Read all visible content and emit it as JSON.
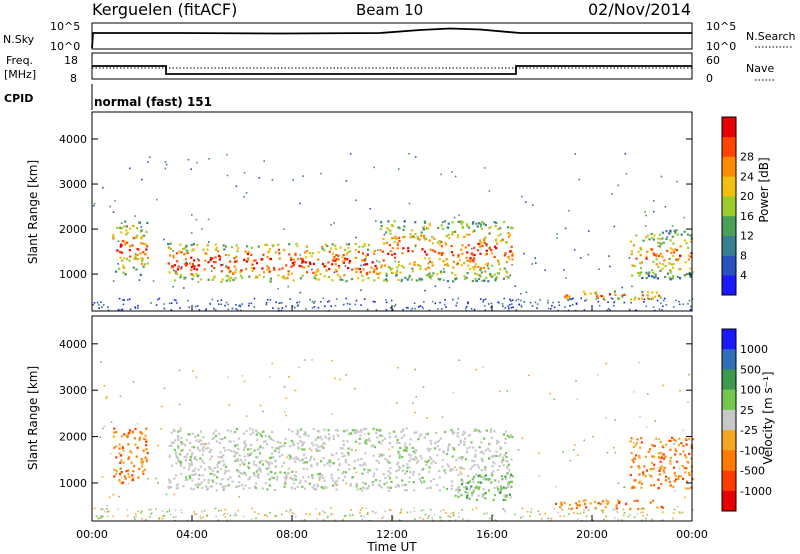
{
  "header": {
    "station": "Kerguelen (fitACF)",
    "beam": "Beam 10",
    "date": "02/Nov/2014"
  },
  "strips": {
    "nsky": {
      "label": "N.Sky",
      "tick_top": "10^5",
      "tick_bottom": "10^0"
    },
    "nsearch": {
      "label": "N.Search",
      "tick_top": "10^5",
      "tick_bottom": "10^0"
    },
    "freq": {
      "label_line1": "Freq.",
      "label_line2": "[MHz]",
      "tick_top": "18",
      "tick_bottom": "8"
    },
    "nave": {
      "label": "Nave",
      "tick_top": "60",
      "tick_bottom": "0"
    },
    "cpid": {
      "label": "CPID",
      "value": "normal (fast) 151"
    }
  },
  "chart_data": [
    {
      "type": "heatmap",
      "panel": "power",
      "ylabel": "Slant Range [km]",
      "yticks": [
        "1000",
        "2000",
        "3000",
        "4000"
      ],
      "ylim": [
        180,
        4600
      ],
      "xlim": [
        0,
        24
      ],
      "colorbar": {
        "label": "Power [dB]",
        "ticks": [
          "4",
          "8",
          "12",
          "16",
          "20",
          "24",
          "28"
        ],
        "range": [
          0,
          30
        ],
        "colors": [
          "#1a1aff",
          "#2a52be",
          "#3a7f8f",
          "#4aa058",
          "#9ccc2c",
          "#f0c010",
          "#ff8c00",
          "#ff4500",
          "#e60000"
        ]
      },
      "echo_regions": [
        {
          "t0": 0.8,
          "t1": 2.2,
          "r0": 1000,
          "r1": 2200,
          "level": 0.55
        },
        {
          "t0": 3.0,
          "t1": 11.5,
          "r0": 850,
          "r1": 1700,
          "level": 0.75
        },
        {
          "t0": 11.5,
          "t1": 16.8,
          "r0": 850,
          "r1": 2200,
          "level": 0.6
        },
        {
          "t0": 18.5,
          "t1": 22.8,
          "r0": 450,
          "r1": 650,
          "level": 0.7
        },
        {
          "t0": 21.5,
          "t1": 24.0,
          "r0": 900,
          "r1": 2000,
          "level": 0.5
        }
      ]
    },
    {
      "type": "heatmap",
      "panel": "velocity",
      "ylabel": "Slant Range [km]",
      "yticks": [
        "1000",
        "2000",
        "3000",
        "4000"
      ],
      "ylim": [
        180,
        4600
      ],
      "xlim": [
        0,
        24
      ],
      "xticks": [
        "00:00",
        "04:00",
        "08:00",
        "12:00",
        "16:00",
        "20:00",
        "00:00"
      ],
      "xlabel": "Time UT",
      "colorbar": {
        "label": "Velocity [m s⁻¹]",
        "ticks": [
          "1000",
          "500",
          "100",
          "25",
          "-25",
          "-100",
          "-500",
          "-1000"
        ],
        "colors": [
          "#1a1aff",
          "#2e6fb5",
          "#3c9a50",
          "#74c850",
          "#c8c8c8",
          "#f5a623",
          "#ff7a00",
          "#ff3c00",
          "#e60000"
        ]
      },
      "echo_regions": [
        {
          "t0": 0.8,
          "t1": 2.2,
          "r0": 1000,
          "r1": 2200,
          "class": "negative"
        },
        {
          "t0": 3.0,
          "t1": 16.8,
          "r0": 850,
          "r1": 2200,
          "class": "near-zero"
        },
        {
          "t0": 14.5,
          "t1": 16.8,
          "r0": 650,
          "r1": 1200,
          "class": "positive"
        },
        {
          "t0": 18.5,
          "t1": 22.8,
          "r0": 450,
          "r1": 650,
          "class": "negative"
        },
        {
          "t0": 21.5,
          "t1": 24.0,
          "r0": 900,
          "r1": 2000,
          "class": "negative"
        }
      ]
    }
  ]
}
